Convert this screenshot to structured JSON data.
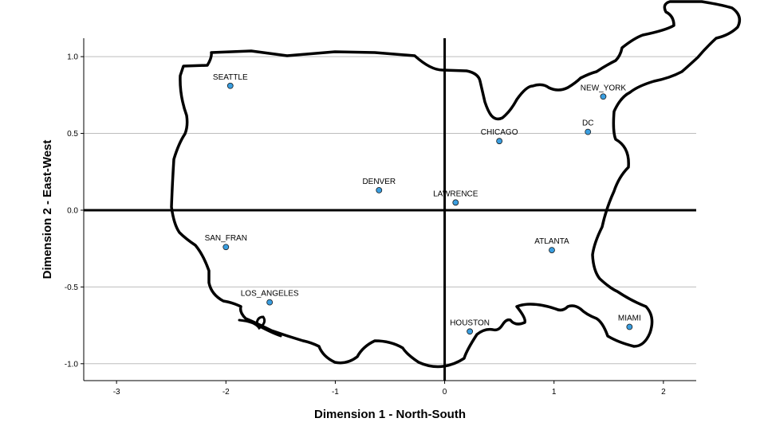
{
  "chart_data": {
    "type": "scatter",
    "title": "",
    "xlabel": "Dimension 1 - North-South",
    "ylabel": "Dimension 2 - East-West",
    "xlim": [
      -3.3,
      2.3
    ],
    "ylim": [
      -1.11,
      1.12
    ],
    "x_ticks": [
      -3,
      -2,
      -1,
      0,
      1,
      2
    ],
    "x_tick_labels": [
      "-3",
      "-2",
      "-1",
      "0",
      "1",
      "2"
    ],
    "y_ticks": [
      -1.0,
      -0.5,
      0.0,
      0.5,
      1.0
    ],
    "y_tick_labels": [
      "-1.0",
      "-0.5",
      "0.0",
      "0.5",
      "1.0"
    ],
    "grid": "horizontal",
    "reference_lines": {
      "x": 0,
      "y": 0
    },
    "marker_color": "#3a9ee0",
    "points": [
      {
        "label": "SEATTLE",
        "x": -1.96,
        "y": 0.81
      },
      {
        "label": "NEW_YORK",
        "x": 1.45,
        "y": 0.74
      },
      {
        "label": "DC",
        "x": 1.31,
        "y": 0.51
      },
      {
        "label": "CHICAGO",
        "x": 0.5,
        "y": 0.45
      },
      {
        "label": "DENVER",
        "x": -0.6,
        "y": 0.13
      },
      {
        "label": "LAWRENCE",
        "x": 0.1,
        "y": 0.05
      },
      {
        "label": "SAN_FRAN",
        "x": -2.0,
        "y": -0.24
      },
      {
        "label": "ATLANTA",
        "x": 0.98,
        "y": -0.26
      },
      {
        "label": "LOS_ANGELES",
        "x": -1.6,
        "y": -0.6
      },
      {
        "label": "HOUSTON",
        "x": 0.23,
        "y": -0.79
      },
      {
        "label": "MIAMI",
        "x": 1.69,
        "y": -0.76
      }
    ]
  }
}
